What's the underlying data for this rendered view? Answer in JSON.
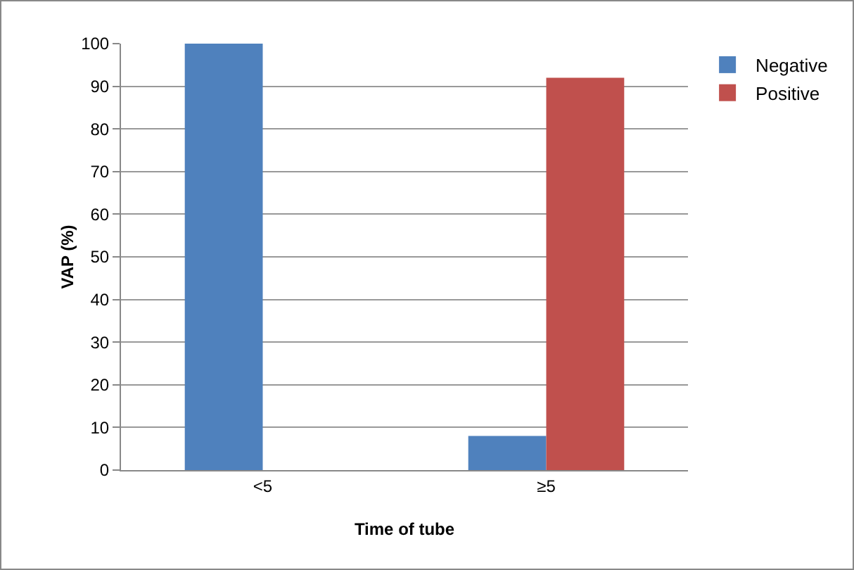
{
  "chart_data": {
    "type": "bar",
    "xlabel": "Time of tube",
    "ylabel": "VAP (%)",
    "categories": [
      "<5",
      "≥5"
    ],
    "series": [
      {
        "name": "Negative",
        "color": "#4f81bd",
        "values": [
          100,
          8
        ]
      },
      {
        "name": "Positive",
        "color": "#c0504d",
        "values": [
          0,
          92
        ]
      }
    ],
    "ylim": [
      0,
      100
    ],
    "yticks": [
      0,
      10,
      20,
      30,
      40,
      50,
      60,
      70,
      80,
      90,
      100
    ],
    "grid": "y",
    "legend": "top right"
  }
}
